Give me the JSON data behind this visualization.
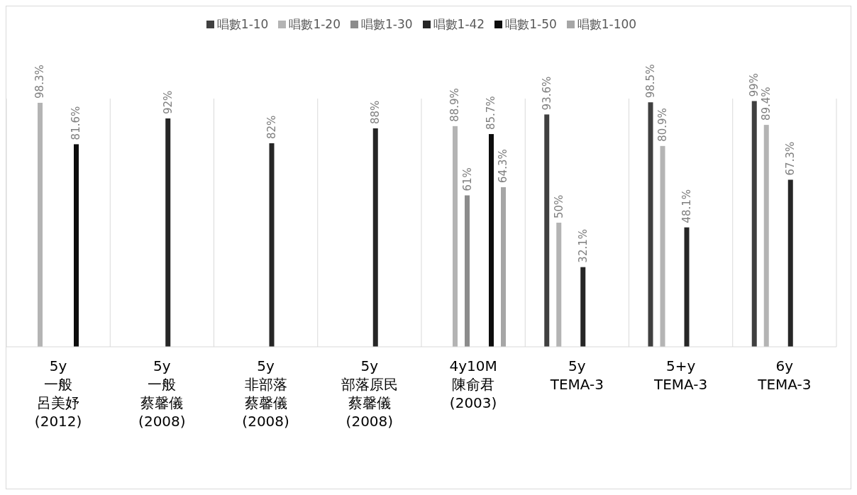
{
  "chart_data": {
    "type": "bar",
    "categories": [
      "5y\n一般呂美妤\n(2012)",
      "5y\n一般蔡馨儀\n(2008)",
      "5y\n非部落蔡馨儀\n(2008)",
      "5y\n部落原民蔡馨儀\n(2008)",
      "4y10M\n陳俞君\n(2003)",
      "5y\nTEMA-3",
      "5+y\nTEMA-3",
      "6y\nTEMA-3"
    ],
    "series": [
      {
        "name": "唱數1-10",
        "color": "#404040",
        "values": [
          null,
          null,
          null,
          null,
          null,
          93.6,
          98.5,
          99
        ],
        "value_labels": [
          null,
          null,
          null,
          null,
          null,
          "93.6%",
          "98.5%",
          "99%"
        ]
      },
      {
        "name": "唱數1-20",
        "color": "#b4b4b4",
        "values": [
          98.3,
          null,
          null,
          null,
          88.9,
          50,
          80.9,
          89.4
        ],
        "value_labels": [
          "98.3%",
          null,
          null,
          null,
          "88.9%",
          "50%",
          "80.9%",
          "89.4%"
        ]
      },
      {
        "name": "唱數1-30",
        "color": "#8c8c8c",
        "values": [
          null,
          null,
          null,
          null,
          61,
          null,
          null,
          null
        ],
        "value_labels": [
          null,
          null,
          null,
          null,
          "61%",
          null,
          null,
          null
        ]
      },
      {
        "name": "唱數1-42",
        "color": "#262626",
        "values": [
          null,
          92,
          82,
          88,
          null,
          32.1,
          48.1,
          67.3
        ],
        "value_labels": [
          null,
          "92%",
          "82%",
          "88%",
          null,
          "32.1%",
          "48.1%",
          "67.3%"
        ]
      },
      {
        "name": "唱數1-50",
        "color": "#0d0d0d",
        "values": [
          81.6,
          null,
          null,
          null,
          85.7,
          null,
          null,
          null
        ],
        "value_labels": [
          "81.6%",
          null,
          null,
          null,
          "85.7%",
          null,
          null,
          null
        ]
      },
      {
        "name": "唱數1-100",
        "color": "#a6a6a6",
        "values": [
          null,
          null,
          null,
          null,
          64.3,
          null,
          null,
          null
        ],
        "value_labels": [
          null,
          null,
          null,
          null,
          "64.3%",
          null,
          null,
          null
        ]
      }
    ],
    "ylim": [
      0,
      100
    ],
    "tick_labels": "x",
    "grid": "x",
    "legend": "top"
  }
}
